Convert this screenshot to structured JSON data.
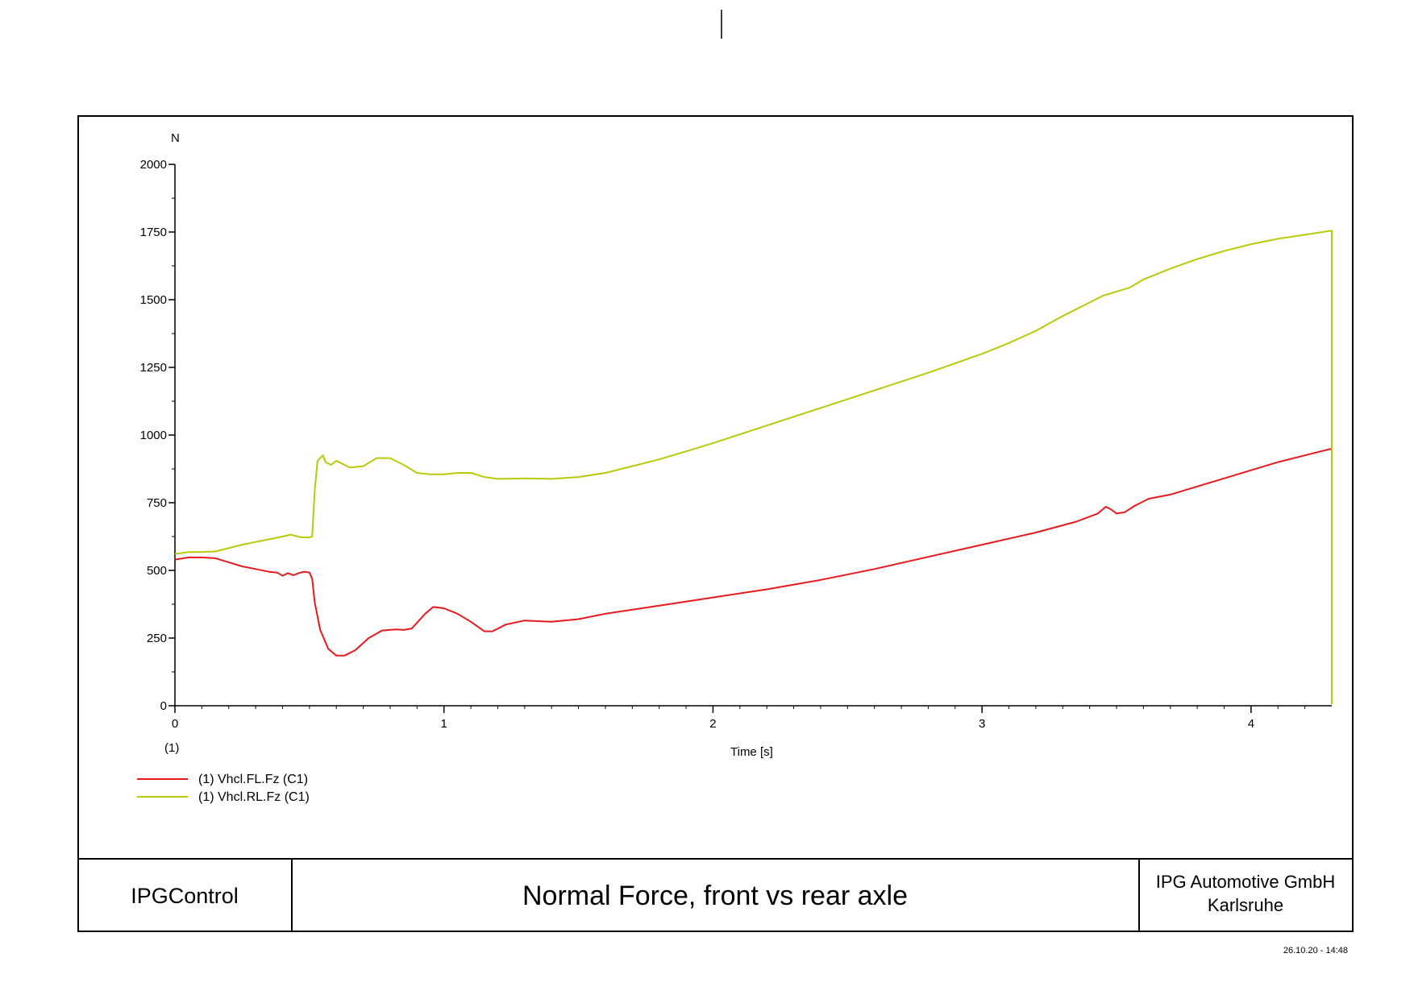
{
  "chart_data": {
    "type": "line",
    "xlabel": "Time [s]",
    "ylabel": "N",
    "xlim": [
      0,
      4.3
    ],
    "ylim": [
      0,
      2000
    ],
    "x_ticks": [
      0,
      1,
      2,
      3,
      4
    ],
    "y_ticks": [
      0,
      250,
      500,
      750,
      1000,
      1250,
      1500,
      1750,
      2000
    ],
    "x_tick_labels": [
      "0",
      "1",
      "2",
      "3",
      "4"
    ],
    "y_tick_labels": [
      "0",
      "250",
      "500",
      "750",
      "1000",
      "1250",
      "1500",
      "1750",
      "2000"
    ],
    "axis_index_label": "(1)",
    "grid": false,
    "legend_position": "bottom-left",
    "series": [
      {
        "name": "(1) Vhcl.FL.Fz (C1)",
        "color": "#e8191c",
        "points": [
          [
            0,
            540
          ],
          [
            0.05,
            548
          ],
          [
            0.1,
            548
          ],
          [
            0.15,
            545
          ],
          [
            0.2,
            530
          ],
          [
            0.25,
            515
          ],
          [
            0.3,
            505
          ],
          [
            0.35,
            495
          ],
          [
            0.38,
            492
          ],
          [
            0.4,
            480
          ],
          [
            0.42,
            490
          ],
          [
            0.44,
            482
          ],
          [
            0.46,
            490
          ],
          [
            0.48,
            495
          ],
          [
            0.5,
            492
          ],
          [
            0.51,
            470
          ],
          [
            0.52,
            380
          ],
          [
            0.54,
            280
          ],
          [
            0.57,
            210
          ],
          [
            0.6,
            185
          ],
          [
            0.63,
            185
          ],
          [
            0.67,
            205
          ],
          [
            0.72,
            250
          ],
          [
            0.77,
            278
          ],
          [
            0.82,
            282
          ],
          [
            0.85,
            280
          ],
          [
            0.88,
            285
          ],
          [
            0.93,
            340
          ],
          [
            0.96,
            365
          ],
          [
            1.0,
            360
          ],
          [
            1.05,
            340
          ],
          [
            1.1,
            310
          ],
          [
            1.15,
            275
          ],
          [
            1.18,
            275
          ],
          [
            1.23,
            300
          ],
          [
            1.3,
            315
          ],
          [
            1.4,
            310
          ],
          [
            1.5,
            320
          ],
          [
            1.6,
            340
          ],
          [
            1.8,
            370
          ],
          [
            2.0,
            400
          ],
          [
            2.2,
            430
          ],
          [
            2.4,
            465
          ],
          [
            2.6,
            505
          ],
          [
            2.8,
            550
          ],
          [
            3.0,
            595
          ],
          [
            3.2,
            640
          ],
          [
            3.35,
            680
          ],
          [
            3.43,
            710
          ],
          [
            3.46,
            735
          ],
          [
            3.48,
            725
          ],
          [
            3.5,
            710
          ],
          [
            3.53,
            715
          ],
          [
            3.57,
            740
          ],
          [
            3.62,
            765
          ],
          [
            3.7,
            780
          ],
          [
            3.8,
            810
          ],
          [
            3.9,
            840
          ],
          [
            4.0,
            870
          ],
          [
            4.1,
            900
          ],
          [
            4.2,
            925
          ],
          [
            4.3,
            950
          ],
          [
            4.3,
            870
          ],
          [
            4.3,
            480
          ]
        ]
      },
      {
        "name": "(1) Vhcl.RL.Fz (C1)",
        "color": "#b9c90a",
        "points": [
          [
            0,
            560
          ],
          [
            0.05,
            568
          ],
          [
            0.1,
            568
          ],
          [
            0.15,
            570
          ],
          [
            0.2,
            582
          ],
          [
            0.25,
            595
          ],
          [
            0.3,
            605
          ],
          [
            0.35,
            615
          ],
          [
            0.4,
            625
          ],
          [
            0.43,
            632
          ],
          [
            0.47,
            622
          ],
          [
            0.5,
            622
          ],
          [
            0.51,
            625
          ],
          [
            0.52,
            800
          ],
          [
            0.53,
            905
          ],
          [
            0.55,
            925
          ],
          [
            0.56,
            900
          ],
          [
            0.58,
            890
          ],
          [
            0.6,
            905
          ],
          [
            0.62,
            895
          ],
          [
            0.65,
            880
          ],
          [
            0.7,
            885
          ],
          [
            0.75,
            915
          ],
          [
            0.8,
            915
          ],
          [
            0.85,
            890
          ],
          [
            0.9,
            860
          ],
          [
            0.95,
            855
          ],
          [
            1.0,
            855
          ],
          [
            1.05,
            860
          ],
          [
            1.1,
            860
          ],
          [
            1.15,
            845
          ],
          [
            1.2,
            838
          ],
          [
            1.3,
            840
          ],
          [
            1.4,
            838
          ],
          [
            1.5,
            845
          ],
          [
            1.6,
            860
          ],
          [
            1.7,
            885
          ],
          [
            1.8,
            910
          ],
          [
            1.9,
            940
          ],
          [
            2.0,
            970
          ],
          [
            2.2,
            1035
          ],
          [
            2.4,
            1100
          ],
          [
            2.6,
            1165
          ],
          [
            2.8,
            1230
          ],
          [
            3.0,
            1300
          ],
          [
            3.1,
            1340
          ],
          [
            3.2,
            1385
          ],
          [
            3.3,
            1440
          ],
          [
            3.4,
            1490
          ],
          [
            3.45,
            1515
          ],
          [
            3.5,
            1530
          ],
          [
            3.55,
            1545
          ],
          [
            3.6,
            1575
          ],
          [
            3.7,
            1615
          ],
          [
            3.8,
            1650
          ],
          [
            3.9,
            1680
          ],
          [
            4.0,
            1705
          ],
          [
            4.1,
            1725
          ],
          [
            4.2,
            1740
          ],
          [
            4.3,
            1755
          ],
          [
            4.3,
            900
          ],
          [
            4.3,
            5
          ]
        ]
      }
    ]
  },
  "footer": {
    "left": "IPGControl",
    "title": "Normal Force, front vs rear axle",
    "company_line1": "IPG Automotive GmbH",
    "company_line2": "Karlsruhe"
  },
  "timestamp": "26.10.20 - 14:48"
}
